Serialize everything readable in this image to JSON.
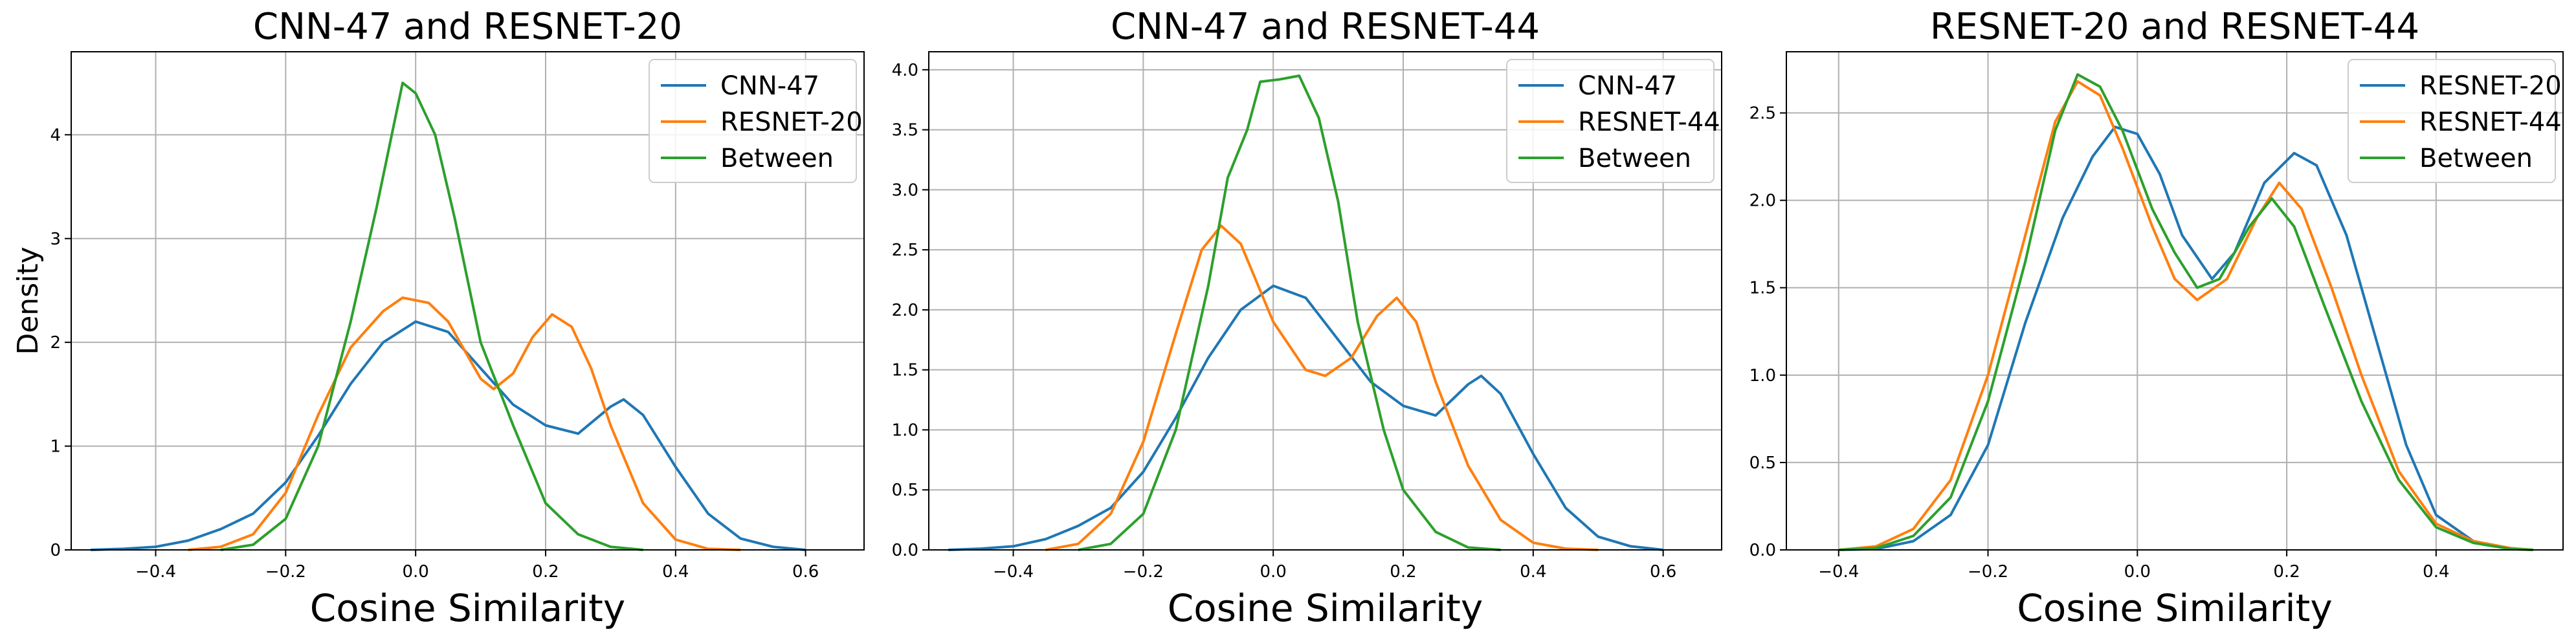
{
  "colors": {
    "blue": "#1f77b4",
    "orange": "#ff7f0e",
    "green": "#2ca02c"
  },
  "chart_data": [
    {
      "type": "line",
      "title": "CNN-47 and RESNET-20",
      "xlabel": "Cosine Similarity",
      "ylabel": "Density",
      "xlim": [
        -0.53,
        0.69
      ],
      "ylim": [
        0,
        4.8
      ],
      "xticks": [
        -0.4,
        -0.2,
        0.0,
        0.2,
        0.4,
        0.6
      ],
      "xtick_labels": [
        "−0.4",
        "−0.2",
        "0.0",
        "0.2",
        "0.4",
        "0.6"
      ],
      "yticks": [
        0,
        1,
        2,
        3,
        4
      ],
      "ytick_labels": [
        "0",
        "1",
        "2",
        "3",
        "4"
      ],
      "grid": true,
      "legend": "top-right",
      "series": [
        {
          "name": "CNN-47",
          "color": "#1f77b4",
          "points": [
            [
              -0.5,
              0.0
            ],
            [
              -0.45,
              0.01
            ],
            [
              -0.4,
              0.03
            ],
            [
              -0.35,
              0.09
            ],
            [
              -0.3,
              0.2
            ],
            [
              -0.25,
              0.35
            ],
            [
              -0.2,
              0.65
            ],
            [
              -0.15,
              1.1
            ],
            [
              -0.1,
              1.6
            ],
            [
              -0.05,
              2.0
            ],
            [
              0.0,
              2.2
            ],
            [
              0.05,
              2.1
            ],
            [
              0.1,
              1.75
            ],
            [
              0.15,
              1.4
            ],
            [
              0.2,
              1.2
            ],
            [
              0.25,
              1.12
            ],
            [
              0.3,
              1.38
            ],
            [
              0.32,
              1.45
            ],
            [
              0.35,
              1.3
            ],
            [
              0.4,
              0.8
            ],
            [
              0.45,
              0.35
            ],
            [
              0.5,
              0.11
            ],
            [
              0.55,
              0.03
            ],
            [
              0.6,
              0.0
            ]
          ]
        },
        {
          "name": "RESNET-20",
          "color": "#ff7f0e",
          "points": [
            [
              -0.35,
              0.0
            ],
            [
              -0.3,
              0.03
            ],
            [
              -0.25,
              0.15
            ],
            [
              -0.2,
              0.55
            ],
            [
              -0.15,
              1.3
            ],
            [
              -0.1,
              1.95
            ],
            [
              -0.05,
              2.3
            ],
            [
              -0.02,
              2.43
            ],
            [
              0.02,
              2.38
            ],
            [
              0.05,
              2.2
            ],
            [
              0.1,
              1.65
            ],
            [
              0.12,
              1.55
            ],
            [
              0.15,
              1.7
            ],
            [
              0.18,
              2.05
            ],
            [
              0.21,
              2.27
            ],
            [
              0.24,
              2.15
            ],
            [
              0.27,
              1.75
            ],
            [
              0.3,
              1.2
            ],
            [
              0.35,
              0.45
            ],
            [
              0.4,
              0.1
            ],
            [
              0.45,
              0.01
            ],
            [
              0.5,
              0.0
            ]
          ]
        },
        {
          "name": "Between",
          "color": "#2ca02c",
          "points": [
            [
              -0.3,
              0.0
            ],
            [
              -0.25,
              0.05
            ],
            [
              -0.2,
              0.3
            ],
            [
              -0.15,
              1.0
            ],
            [
              -0.1,
              2.2
            ],
            [
              -0.06,
              3.3
            ],
            [
              -0.03,
              4.2
            ],
            [
              -0.02,
              4.5
            ],
            [
              0.0,
              4.4
            ],
            [
              0.03,
              4.0
            ],
            [
              0.06,
              3.2
            ],
            [
              0.1,
              2.0
            ],
            [
              0.15,
              1.2
            ],
            [
              0.2,
              0.45
            ],
            [
              0.25,
              0.15
            ],
            [
              0.3,
              0.03
            ],
            [
              0.35,
              0.0
            ]
          ]
        }
      ]
    },
    {
      "type": "line",
      "title": "CNN-47 and RESNET-44",
      "xlabel": "Cosine Similarity",
      "ylabel": "",
      "xlim": [
        -0.53,
        0.69
      ],
      "ylim": [
        0,
        4.15
      ],
      "xticks": [
        -0.4,
        -0.2,
        0.0,
        0.2,
        0.4,
        0.6
      ],
      "xtick_labels": [
        "−0.4",
        "−0.2",
        "0.0",
        "0.2",
        "0.4",
        "0.6"
      ],
      "yticks": [
        0,
        0.5,
        1,
        1.5,
        2,
        2.5,
        3,
        3.5,
        4
      ],
      "ytick_labels": [
        "0.0",
        "0.5",
        "1.0",
        "1.5",
        "2.0",
        "2.5",
        "3.0",
        "3.5",
        "4.0"
      ],
      "grid": true,
      "legend": "top-right",
      "series": [
        {
          "name": "CNN-47",
          "color": "#1f77b4",
          "points": [
            [
              -0.5,
              0.0
            ],
            [
              -0.45,
              0.01
            ],
            [
              -0.4,
              0.03
            ],
            [
              -0.35,
              0.09
            ],
            [
              -0.3,
              0.2
            ],
            [
              -0.25,
              0.35
            ],
            [
              -0.2,
              0.65
            ],
            [
              -0.15,
              1.1
            ],
            [
              -0.1,
              1.6
            ],
            [
              -0.05,
              2.0
            ],
            [
              0.0,
              2.2
            ],
            [
              0.05,
              2.1
            ],
            [
              0.1,
              1.75
            ],
            [
              0.15,
              1.4
            ],
            [
              0.2,
              1.2
            ],
            [
              0.25,
              1.12
            ],
            [
              0.3,
              1.38
            ],
            [
              0.32,
              1.45
            ],
            [
              0.35,
              1.3
            ],
            [
              0.4,
              0.8
            ],
            [
              0.45,
              0.35
            ],
            [
              0.5,
              0.11
            ],
            [
              0.55,
              0.03
            ],
            [
              0.6,
              0.0
            ]
          ]
        },
        {
          "name": "RESNET-44",
          "color": "#ff7f0e",
          "points": [
            [
              -0.35,
              0.0
            ],
            [
              -0.3,
              0.05
            ],
            [
              -0.25,
              0.3
            ],
            [
              -0.2,
              0.9
            ],
            [
              -0.15,
              1.8
            ],
            [
              -0.11,
              2.5
            ],
            [
              -0.08,
              2.7
            ],
            [
              -0.05,
              2.55
            ],
            [
              0.0,
              1.9
            ],
            [
              0.05,
              1.5
            ],
            [
              0.08,
              1.45
            ],
            [
              0.12,
              1.6
            ],
            [
              0.16,
              1.95
            ],
            [
              0.19,
              2.1
            ],
            [
              0.22,
              1.9
            ],
            [
              0.25,
              1.4
            ],
            [
              0.3,
              0.7
            ],
            [
              0.35,
              0.25
            ],
            [
              0.4,
              0.06
            ],
            [
              0.45,
              0.01
            ],
            [
              0.5,
              0.0
            ]
          ]
        },
        {
          "name": "Between",
          "color": "#2ca02c",
          "points": [
            [
              -0.3,
              0.0
            ],
            [
              -0.25,
              0.05
            ],
            [
              -0.2,
              0.3
            ],
            [
              -0.15,
              1.0
            ],
            [
              -0.1,
              2.2
            ],
            [
              -0.07,
              3.1
            ],
            [
              -0.04,
              3.5
            ],
            [
              -0.02,
              3.9
            ],
            [
              0.01,
              3.92
            ],
            [
              0.04,
              3.95
            ],
            [
              0.07,
              3.6
            ],
            [
              0.1,
              2.9
            ],
            [
              0.13,
              1.9
            ],
            [
              0.17,
              1.0
            ],
            [
              0.2,
              0.5
            ],
            [
              0.25,
              0.15
            ],
            [
              0.3,
              0.02
            ],
            [
              0.35,
              0.0
            ]
          ]
        }
      ]
    },
    {
      "type": "line",
      "title": "RESNET-20 and RESNET-44",
      "xlabel": "Cosine Similarity",
      "ylabel": "",
      "xlim": [
        -0.47,
        0.57
      ],
      "ylim": [
        0,
        2.85
      ],
      "xticks": [
        -0.4,
        -0.2,
        0.0,
        0.2,
        0.4
      ],
      "xtick_labels": [
        "−0.4",
        "−0.2",
        "0.0",
        "0.2",
        "0.4"
      ],
      "yticks": [
        0,
        0.5,
        1,
        1.5,
        2,
        2.5
      ],
      "ytick_labels": [
        "0.0",
        "0.5",
        "1.0",
        "1.5",
        "2.0",
        "2.5"
      ],
      "grid": true,
      "legend": "top-right",
      "series": [
        {
          "name": "RESNET-20",
          "color": "#1f77b4",
          "points": [
            [
              -0.4,
              0.0
            ],
            [
              -0.35,
              0.005
            ],
            [
              -0.3,
              0.05
            ],
            [
              -0.25,
              0.2
            ],
            [
              -0.2,
              0.6
            ],
            [
              -0.15,
              1.3
            ],
            [
              -0.1,
              1.9
            ],
            [
              -0.06,
              2.25
            ],
            [
              -0.03,
              2.42
            ],
            [
              0.0,
              2.38
            ],
            [
              0.03,
              2.15
            ],
            [
              0.06,
              1.8
            ],
            [
              0.1,
              1.55
            ],
            [
              0.13,
              1.7
            ],
            [
              0.17,
              2.1
            ],
            [
              0.21,
              2.27
            ],
            [
              0.24,
              2.2
            ],
            [
              0.28,
              1.8
            ],
            [
              0.32,
              1.2
            ],
            [
              0.36,
              0.6
            ],
            [
              0.4,
              0.2
            ],
            [
              0.45,
              0.05
            ],
            [
              0.5,
              0.005
            ],
            [
              0.53,
              0.0
            ]
          ]
        },
        {
          "name": "RESNET-44",
          "color": "#ff7f0e",
          "points": [
            [
              -0.4,
              0.0
            ],
            [
              -0.35,
              0.02
            ],
            [
              -0.3,
              0.12
            ],
            [
              -0.25,
              0.4
            ],
            [
              -0.2,
              1.0
            ],
            [
              -0.15,
              1.8
            ],
            [
              -0.11,
              2.45
            ],
            [
              -0.08,
              2.68
            ],
            [
              -0.05,
              2.6
            ],
            [
              -0.02,
              2.3
            ],
            [
              0.02,
              1.85
            ],
            [
              0.05,
              1.55
            ],
            [
              0.08,
              1.43
            ],
            [
              0.12,
              1.55
            ],
            [
              0.16,
              1.9
            ],
            [
              0.19,
              2.1
            ],
            [
              0.22,
              1.95
            ],
            [
              0.26,
              1.5
            ],
            [
              0.3,
              1.0
            ],
            [
              0.35,
              0.45
            ],
            [
              0.4,
              0.15
            ],
            [
              0.45,
              0.05
            ],
            [
              0.5,
              0.01
            ],
            [
              0.53,
              0.0
            ]
          ]
        },
        {
          "name": "Between",
          "color": "#2ca02c",
          "points": [
            [
              -0.4,
              0.0
            ],
            [
              -0.35,
              0.01
            ],
            [
              -0.3,
              0.08
            ],
            [
              -0.25,
              0.3
            ],
            [
              -0.2,
              0.85
            ],
            [
              -0.15,
              1.65
            ],
            [
              -0.11,
              2.4
            ],
            [
              -0.08,
              2.72
            ],
            [
              -0.05,
              2.65
            ],
            [
              -0.02,
              2.4
            ],
            [
              0.02,
              1.95
            ],
            [
              0.05,
              1.7
            ],
            [
              0.08,
              1.5
            ],
            [
              0.11,
              1.55
            ],
            [
              0.15,
              1.85
            ],
            [
              0.18,
              2.01
            ],
            [
              0.21,
              1.85
            ],
            [
              0.25,
              1.4
            ],
            [
              0.3,
              0.85
            ],
            [
              0.35,
              0.4
            ],
            [
              0.4,
              0.13
            ],
            [
              0.45,
              0.04
            ],
            [
              0.5,
              0.005
            ],
            [
              0.53,
              0.0
            ]
          ]
        }
      ]
    }
  ]
}
